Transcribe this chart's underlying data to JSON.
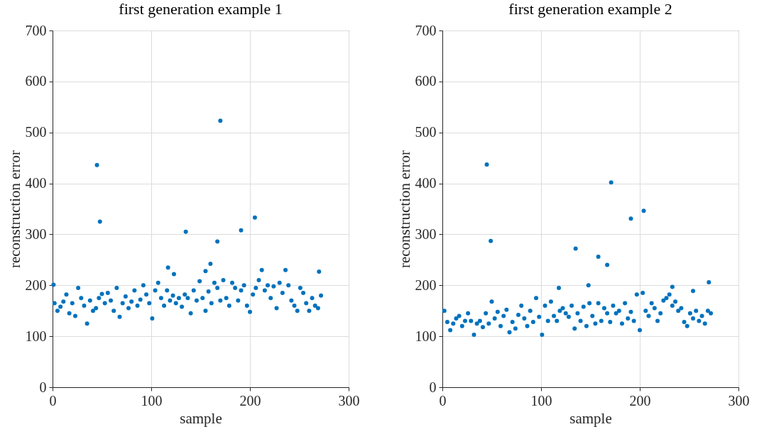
{
  "chart_data": [
    {
      "type": "scatter",
      "title": "first generation example 1",
      "xlabel": "sample",
      "ylabel": "reconstruction error",
      "xlim": [
        0,
        300
      ],
      "xticks": [
        0,
        100,
        200,
        300
      ],
      "ylim": [
        0,
        700
      ],
      "yticks": [
        0,
        100,
        200,
        300,
        400,
        500,
        600,
        700
      ],
      "grid": true,
      "marker": "circle",
      "x": [
        2,
        5,
        8,
        11,
        14,
        17,
        20,
        23,
        26,
        29,
        32,
        35,
        38,
        41,
        44,
        47,
        50,
        53,
        56,
        59,
        62,
        65,
        68,
        71,
        74,
        77,
        80,
        83,
        86,
        89,
        92,
        95,
        98,
        101,
        104,
        107,
        110,
        113,
        116,
        119,
        122,
        125,
        128,
        131,
        134,
        137,
        140,
        143,
        146,
        149,
        152,
        155,
        158,
        161,
        164,
        167,
        170,
        173,
        176,
        179,
        182,
        185,
        188,
        191,
        194,
        197,
        200,
        203,
        206,
        209,
        212,
        215,
        218,
        221,
        224,
        227,
        230,
        233,
        236,
        239,
        242,
        245,
        248,
        251,
        254,
        257,
        260,
        263,
        266,
        269,
        272,
        1,
        45,
        48,
        135,
        167,
        170,
        191,
        205,
        160,
        155,
        117,
        123,
        270
      ],
      "series": [
        {
          "color": "#0072bd",
          "values": [
            165,
            150,
            158,
            168,
            182,
            145,
            165,
            140,
            195,
            175,
            160,
            125,
            170,
            150,
            155,
            175,
            183,
            165,
            185,
            170,
            150,
            195,
            138,
            165,
            178,
            155,
            168,
            190,
            160,
            172,
            200,
            182,
            165,
            135,
            190,
            205,
            175,
            160,
            190,
            170,
            180,
            165,
            175,
            158,
            182,
            175,
            145,
            190,
            170,
            208,
            175,
            150,
            188,
            165,
            205,
            195,
            170,
            210,
            175,
            160,
            205,
            195,
            170,
            190,
            200,
            160,
            148,
            182,
            195,
            210,
            230,
            190,
            200,
            175,
            198,
            155,
            205,
            185,
            230,
            200,
            170,
            160,
            150,
            195,
            185,
            165,
            150,
            175,
            160,
            155,
            180,
            201,
            436,
            325,
            305,
            286,
            523,
            308,
            333,
            242,
            228,
            235,
            222,
            227
          ]
        }
      ]
    },
    {
      "type": "scatter",
      "title": "first generation example 2",
      "xlabel": "sample",
      "ylabel": "reconstruction error",
      "xlim": [
        0,
        300
      ],
      "xticks": [
        0,
        100,
        200,
        300
      ],
      "ylim": [
        0,
        700
      ],
      "yticks": [
        0,
        100,
        200,
        300,
        400,
        500,
        600,
        700
      ],
      "grid": true,
      "marker": "circle",
      "x": [
        2,
        5,
        8,
        11,
        14,
        17,
        20,
        23,
        26,
        29,
        32,
        35,
        38,
        41,
        44,
        47,
        50,
        53,
        56,
        59,
        62,
        65,
        68,
        71,
        74,
        77,
        80,
        83,
        86,
        89,
        92,
        95,
        98,
        101,
        104,
        107,
        110,
        113,
        116,
        119,
        122,
        125,
        128,
        131,
        134,
        137,
        140,
        143,
        146,
        149,
        152,
        155,
        158,
        161,
        164,
        167,
        170,
        173,
        176,
        179,
        182,
        185,
        188,
        191,
        194,
        197,
        200,
        203,
        206,
        209,
        212,
        215,
        218,
        221,
        224,
        227,
        230,
        233,
        236,
        239,
        242,
        245,
        248,
        251,
        254,
        257,
        260,
        263,
        266,
        269,
        272,
        45,
        49,
        135,
        158,
        167,
        171,
        191,
        204,
        148,
        233,
        270,
        118,
        254
      ],
      "series": [
        {
          "color": "#0072bd",
          "values": [
            150,
            128,
            112,
            125,
            135,
            140,
            120,
            130,
            145,
            130,
            103,
            125,
            130,
            118,
            145,
            125,
            168,
            135,
            148,
            120,
            140,
            152,
            108,
            128,
            115,
            142,
            160,
            135,
            120,
            150,
            128,
            175,
            138,
            103,
            160,
            130,
            168,
            140,
            130,
            150,
            155,
            145,
            138,
            160,
            115,
            145,
            130,
            158,
            120,
            165,
            140,
            125,
            165,
            130,
            155,
            145,
            128,
            160,
            145,
            150,
            125,
            165,
            135,
            148,
            130,
            182,
            112,
            185,
            150,
            140,
            165,
            155,
            130,
            145,
            170,
            175,
            182,
            160,
            168,
            150,
            155,
            128,
            120,
            145,
            135,
            150,
            130,
            140,
            125,
            150,
            145,
            437,
            287,
            272,
            256,
            240,
            402,
            331,
            346,
            200,
            197,
            206,
            195,
            189
          ]
        }
      ]
    }
  ]
}
